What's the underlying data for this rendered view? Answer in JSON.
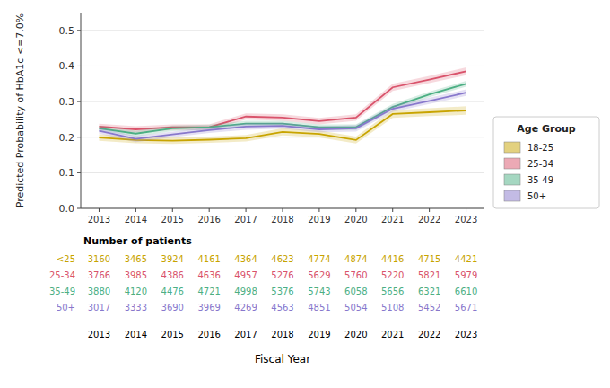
{
  "chart_data": {
    "type": "line",
    "ylabel": "Predicted Probability of HbA1c <=7.0%",
    "xlabel": "Fiscal Year",
    "x": [
      2013,
      2014,
      2015,
      2016,
      2017,
      2018,
      2019,
      2020,
      2021,
      2022,
      2023
    ],
    "xlim": [
      2012.5,
      2023.5
    ],
    "xticks": [
      2013,
      2014,
      2015,
      2016,
      2017,
      2018,
      2019,
      2020,
      2021,
      2022,
      2023
    ],
    "ylim": [
      0.0,
      0.55
    ],
    "yticks": [
      {
        "value": 0.0,
        "label": "0.0"
      },
      0.1,
      0.2,
      0.3,
      0.4,
      0.5
    ],
    "grid": true,
    "legend": "lower right",
    "legend_title": "Age Group",
    "series": [
      {
        "name": "18-25",
        "color": "#C8A400",
        "values": [
          0.199,
          0.192,
          0.19,
          0.193,
          0.197,
          0.215,
          0.209,
          0.192,
          0.265,
          0.27,
          0.275
        ],
        "ci_lower": [
          0.19,
          0.183,
          0.181,
          0.184,
          0.188,
          0.205,
          0.199,
          0.182,
          0.254,
          0.259,
          0.263
        ],
        "ci_upper": [
          0.208,
          0.201,
          0.199,
          0.202,
          0.206,
          0.225,
          0.219,
          0.202,
          0.276,
          0.281,
          0.287
        ]
      },
      {
        "name": "25-34",
        "color": "#D9536B",
        "values": [
          0.23,
          0.222,
          0.228,
          0.228,
          0.258,
          0.255,
          0.245,
          0.255,
          0.34,
          0.362,
          0.385
        ],
        "ci_lower": [
          0.222,
          0.213,
          0.22,
          0.22,
          0.249,
          0.246,
          0.236,
          0.246,
          0.33,
          0.352,
          0.374
        ],
        "ci_upper": [
          0.238,
          0.231,
          0.236,
          0.236,
          0.267,
          0.264,
          0.254,
          0.264,
          0.35,
          0.372,
          0.396
        ]
      },
      {
        "name": "35-49",
        "color": "#4CAF84",
        "values": [
          0.225,
          0.21,
          0.225,
          0.228,
          0.238,
          0.238,
          0.228,
          0.228,
          0.285,
          0.32,
          0.35
        ],
        "ci_lower": [
          0.218,
          0.202,
          0.217,
          0.221,
          0.23,
          0.23,
          0.22,
          0.22,
          0.277,
          0.312,
          0.342
        ],
        "ci_upper": [
          0.232,
          0.218,
          0.233,
          0.235,
          0.246,
          0.246,
          0.236,
          0.236,
          0.293,
          0.328,
          0.358
        ]
      },
      {
        "name": "50+",
        "color": "#8878CC",
        "values": [
          0.218,
          0.195,
          0.208,
          0.22,
          0.23,
          0.232,
          0.222,
          0.225,
          0.28,
          0.302,
          0.325
        ],
        "ci_lower": [
          0.21,
          0.186,
          0.2,
          0.212,
          0.221,
          0.224,
          0.214,
          0.216,
          0.271,
          0.293,
          0.316
        ],
        "ci_upper": [
          0.226,
          0.204,
          0.216,
          0.228,
          0.239,
          0.24,
          0.23,
          0.234,
          0.289,
          0.311,
          0.334
        ]
      }
    ],
    "table": {
      "title": "Number of patients",
      "rows": [
        {
          "label": "<25",
          "color": "#C8A400",
          "values": [
            3160,
            3465,
            3924,
            4161,
            4364,
            4623,
            4774,
            4874,
            4416,
            4715,
            4421
          ]
        },
        {
          "label": "25-34",
          "color": "#D9536B",
          "values": [
            3766,
            3985,
            4386,
            4636,
            4957,
            5276,
            5629,
            5760,
            5220,
            5821,
            5979
          ]
        },
        {
          "label": "35-49",
          "color": "#4CAF84",
          "values": [
            3880,
            4120,
            4476,
            4721,
            4998,
            5376,
            5743,
            6058,
            5656,
            6321,
            6610
          ]
        },
        {
          "label": "50+",
          "color": "#8878CC",
          "values": [
            3017,
            3333,
            3690,
            3969,
            4269,
            4563,
            4851,
            5054,
            5108,
            5452,
            5671
          ]
        }
      ]
    }
  }
}
